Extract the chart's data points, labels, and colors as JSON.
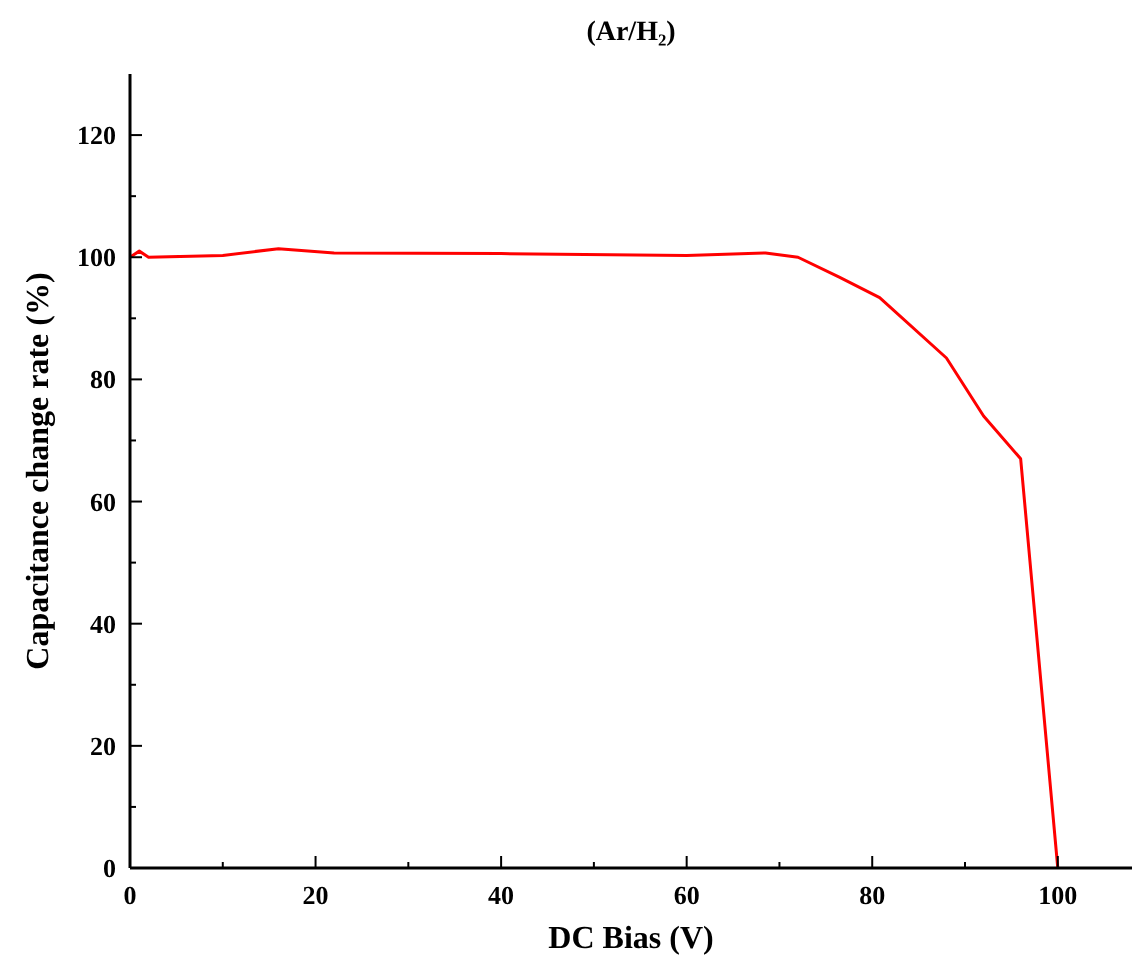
{
  "chart_data": {
    "type": "line",
    "title": "(Ar/H₂)",
    "xlabel": "DC Bias (V)",
    "ylabel": "Capacitance change rate (%)",
    "x": [
      0,
      1,
      2,
      10,
      16,
      22,
      40,
      60,
      68.5,
      72,
      76.5,
      80.8,
      88,
      92,
      96,
      100
    ],
    "series": [
      {
        "color": "#ff0000",
        "values": [
          100,
          101,
          100,
          100.3,
          101.4,
          100.7,
          100.6,
          100.3,
          100.7,
          100,
          96.7,
          93.4,
          83.5,
          74,
          67,
          0
        ]
      }
    ],
    "xlim": [
      0,
      108
    ],
    "ylim": [
      0,
      130
    ],
    "xticks": [
      0,
      {
        "value": 10,
        "label": null
      },
      20,
      {
        "value": 30,
        "label": null
      },
      40,
      {
        "value": 50,
        "label": null
      },
      60,
      {
        "value": 70,
        "label": null
      },
      80,
      {
        "value": 90,
        "label": null
      },
      100
    ],
    "yticks": [
      0,
      {
        "value": 10,
        "label": null
      },
      20,
      {
        "value": 30,
        "label": null
      },
      40,
      {
        "value": 50,
        "label": null
      },
      60,
      {
        "value": 70,
        "label": null
      },
      80,
      {
        "value": 90,
        "label": null
      },
      100,
      {
        "value": 110,
        "label": null
      },
      120
    ],
    "grid": false,
    "marker": "none",
    "line_style": "solid"
  }
}
